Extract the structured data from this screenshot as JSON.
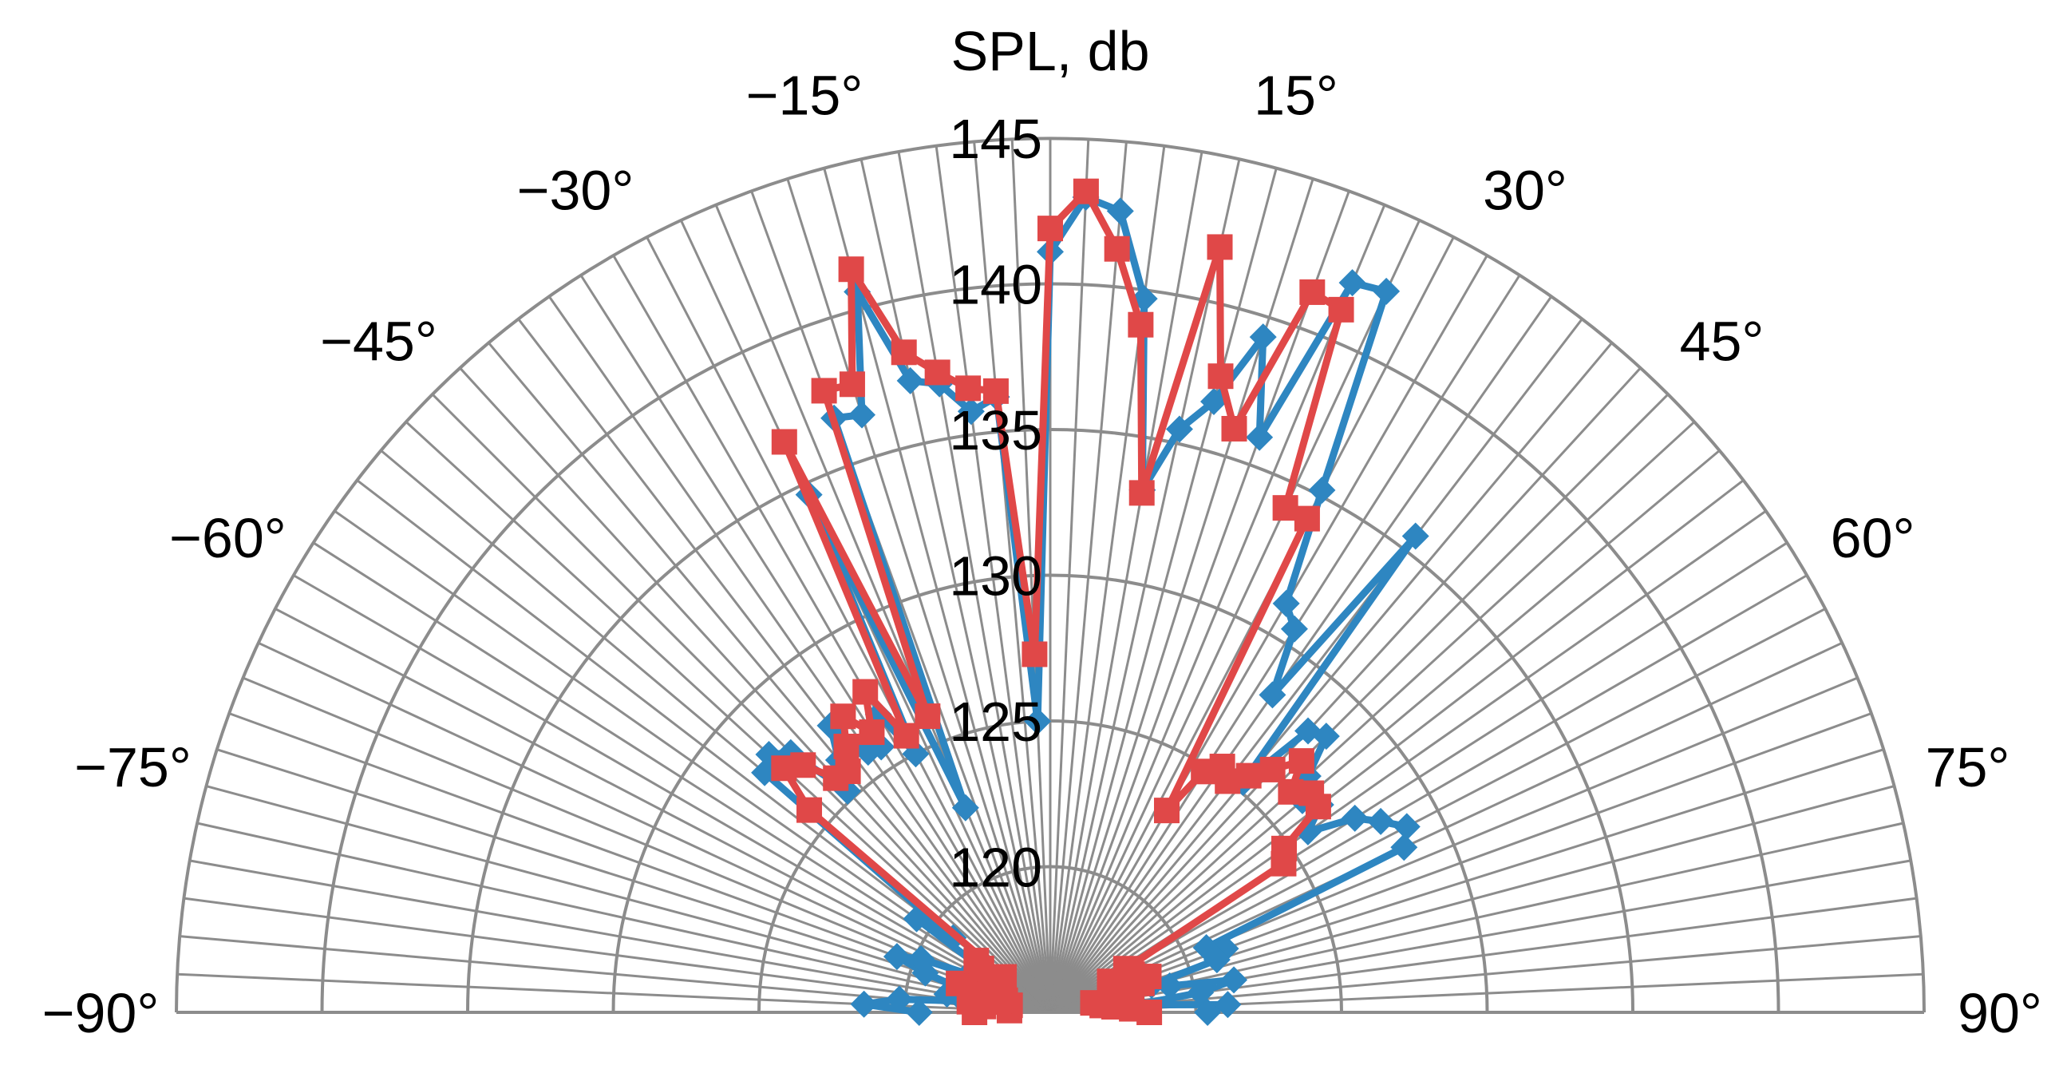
{
  "chart_data": {
    "type": "polar-line",
    "title": "SPL, db",
    "radial_axis": {
      "min": 115,
      "max": 145,
      "ticks": [
        120,
        125,
        130,
        135,
        140,
        145
      ],
      "tick_labels": [
        "120",
        "125",
        "130",
        "135",
        "140",
        "145"
      ]
    },
    "angular_axis": {
      "min": -90,
      "max": 90,
      "step": 2.5,
      "ticks": [
        -90,
        -75,
        -60,
        -45,
        -30,
        -15,
        15,
        30,
        45,
        60,
        75,
        90
      ],
      "tick_labels": [
        "−90°",
        "−75°",
        "−60°",
        "−45°",
        "−30°",
        "−15°",
        "15°",
        "30°",
        "45°",
        "60°",
        "75°",
        "90°"
      ]
    },
    "grid": true,
    "legend": "none",
    "series": [
      {
        "color": "#2E86C1",
        "marker": "diamond",
        "points": [
          {
            "a": -90,
            "r": 119.5
          },
          {
            "a": -87.5,
            "r": 121.4
          },
          {
            "a": -85,
            "r": 120.2
          },
          {
            "a": -82.5,
            "r": 118.0
          },
          {
            "a": -80,
            "r": 118.6
          },
          {
            "a": -77.5,
            "r": 117.2
          },
          {
            "a": -75,
            "r": 118.3
          },
          {
            "a": -72.5,
            "r": 119.5
          },
          {
            "a": -70,
            "r": 120.6
          },
          {
            "a": -67.5,
            "r": 119.8
          },
          {
            "a": -65,
            "r": 118.1
          },
          {
            "a": -62.5,
            "r": 117.3
          },
          {
            "a": -60,
            "r": 117.0
          },
          {
            "a": -57.5,
            "r": 117.6
          },
          {
            "a": -55,
            "r": 120.6
          },
          {
            "a": -52.5,
            "r": 119.2
          },
          {
            "a": -50,
            "r": 127.8
          },
          {
            "a": -47.5,
            "r": 128.1
          },
          {
            "a": -45,
            "r": 127.6
          },
          {
            "a": -42.5,
            "r": 125.3
          },
          {
            "a": -40,
            "r": 126.3
          },
          {
            "a": -37.5,
            "r": 127.4
          },
          {
            "a": -35,
            "r": 125.9
          },
          {
            "a": -32.5,
            "r": 125.8
          },
          {
            "a": -30,
            "r": 126.8
          },
          {
            "a": -27.5,
            "r": 125.0
          },
          {
            "a": -25,
            "r": 134.6
          },
          {
            "a": -22.5,
            "r": 122.6
          },
          {
            "a": -20,
            "r": 136.7
          },
          {
            "a": -17.5,
            "r": 136.5
          },
          {
            "a": -15,
            "r": 140.6
          },
          {
            "a": -12.5,
            "r": 137.2
          },
          {
            "a": -10,
            "r": 136.9
          },
          {
            "a": -7.5,
            "r": 135.8
          },
          {
            "a": -5,
            "r": 136.2
          },
          {
            "a": -2.5,
            "r": 125.0
          },
          {
            "a": 0,
            "r": 141.1
          },
          {
            "a": 2.5,
            "r": 143.0
          },
          {
            "a": 5,
            "r": 142.6
          },
          {
            "a": 7.5,
            "r": 139.7
          },
          {
            "a": 10,
            "r": 133.2
          },
          {
            "a": 12.5,
            "r": 135.5
          },
          {
            "a": 15,
            "r": 136.7
          },
          {
            "a": 17.5,
            "r": 139.3
          },
          {
            "a": 20,
            "r": 136.0
          },
          {
            "a": 22.5,
            "r": 142.1
          },
          {
            "a": 25,
            "r": 142.3
          },
          {
            "a": 27.5,
            "r": 135.2
          },
          {
            "a": 30,
            "r": 131.2
          },
          {
            "a": 32.5,
            "r": 130.6
          },
          {
            "a": 35,
            "r": 128.3
          },
          {
            "a": 37.5,
            "r": 135.6
          },
          {
            "a": 40,
            "r": 125.3
          },
          {
            "a": 42.5,
            "r": 128.1
          },
          {
            "a": 45,
            "r": 128.4
          },
          {
            "a": 47.5,
            "r": 127.0
          },
          {
            "a": 50,
            "r": 126.3
          },
          {
            "a": 52.5,
            "r": 126.7
          },
          {
            "a": 55,
            "r": 125.8
          },
          {
            "a": 57.5,
            "r": 127.4
          },
          {
            "a": 60,
            "r": 128.1
          },
          {
            "a": 62.5,
            "r": 128.8
          },
          {
            "a": 65,
            "r": 128.4
          },
          {
            "a": 67.5,
            "r": 120.8
          },
          {
            "a": 70,
            "r": 121.4
          },
          {
            "a": 72.5,
            "r": 121.0
          },
          {
            "a": 75,
            "r": 118.6
          },
          {
            "a": 77.5,
            "r": 119.2
          },
          {
            "a": 80,
            "r": 121.4
          },
          {
            "a": 82.5,
            "r": 120.2
          },
          {
            "a": 85,
            "r": 118.0
          },
          {
            "a": 87.5,
            "r": 121.1
          },
          {
            "a": 90,
            "r": 120.4
          }
        ]
      },
      {
        "color": "#E04848",
        "marker": "square",
        "points": [
          {
            "a": -90,
            "r": 117.6
          },
          {
            "a": -87.5,
            "r": 116.4
          },
          {
            "a": -85,
            "r": 117.3
          },
          {
            "a": -82.5,
            "r": 117.8
          },
          {
            "a": -80,
            "r": 116.4
          },
          {
            "a": -77.5,
            "r": 116.8
          },
          {
            "a": -75,
            "r": 116.6
          },
          {
            "a": -72.5,
            "r": 118.3
          },
          {
            "a": -70,
            "r": 117.1
          },
          {
            "a": -67.5,
            "r": 117.7
          },
          {
            "a": -65,
            "r": 117.4
          },
          {
            "a": -62.5,
            "r": 117.2
          },
          {
            "a": -60,
            "r": 117.4
          },
          {
            "a": -57.5,
            "r": 117.8
          },
          {
            "a": -55,
            "r": 118.1
          },
          {
            "a": -52.5,
            "r": 117.0
          },
          {
            "a": -50,
            "r": 125.8
          },
          {
            "a": -47.5,
            "r": 127.4
          },
          {
            "a": -45,
            "r": 127.0
          },
          {
            "a": -42.5,
            "r": 125.9
          },
          {
            "a": -40,
            "r": 125.8
          },
          {
            "a": -37.5,
            "r": 126.5
          },
          {
            "a": -35,
            "r": 127.4
          },
          {
            "a": -32.5,
            "r": 126.4
          },
          {
            "a": -30,
            "r": 127.7
          },
          {
            "a": -27.5,
            "r": 125.7
          },
          {
            "a": -25,
            "r": 136.6
          },
          {
            "a": -22.5,
            "r": 126.0
          },
          {
            "a": -20,
            "r": 137.7
          },
          {
            "a": -17.5,
            "r": 137.6
          },
          {
            "a": -15,
            "r": 141.4
          },
          {
            "a": -12.5,
            "r": 138.2
          },
          {
            "a": -10,
            "r": 137.3
          },
          {
            "a": -7.5,
            "r": 136.6
          },
          {
            "a": -5,
            "r": 136.4
          },
          {
            "a": -2.5,
            "r": 127.3
          },
          {
            "a": 0,
            "r": 141.9
          },
          {
            "a": 2.5,
            "r": 143.2
          },
          {
            "a": 5,
            "r": 141.3
          },
          {
            "a": 7.5,
            "r": 138.8
          },
          {
            "a": 10,
            "r": 133.1
          },
          {
            "a": 12.5,
            "r": 141.9
          },
          {
            "a": 15,
            "r": 137.6
          },
          {
            "a": 17.5,
            "r": 136.0
          },
          {
            "a": 20,
            "r": 141.3
          },
          {
            "a": 22.5,
            "r": 141.1
          },
          {
            "a": 25,
            "r": 134.1
          },
          {
            "a": 27.5,
            "r": 134.1
          },
          {
            "a": 30,
            "r": 123.0
          },
          {
            "a": 32.5,
            "r": 124.8
          },
          {
            "a": 35,
            "r": 125.3
          },
          {
            "a": 37.5,
            "r": 125.0
          },
          {
            "a": 40,
            "r": 125.6
          },
          {
            "a": 42.5,
            "r": 126.3
          },
          {
            "a": 45,
            "r": 127.2
          },
          {
            "a": 47.5,
            "r": 126.2
          },
          {
            "a": 50,
            "r": 126.7
          },
          {
            "a": 52.5,
            "r": 126.6
          },
          {
            "a": 55,
            "r": 124.8
          },
          {
            "a": 57.5,
            "r": 124.5
          },
          {
            "a": 60,
            "r": 118.0
          },
          {
            "a": 62.5,
            "r": 117.3
          },
          {
            "a": 65,
            "r": 118.1
          },
          {
            "a": 67.5,
            "r": 117.4
          },
          {
            "a": 70,
            "r": 118.6
          },
          {
            "a": 72.5,
            "r": 118.3
          },
          {
            "a": 75,
            "r": 117.8
          },
          {
            "a": 77.5,
            "r": 116.5
          },
          {
            "a": 80,
            "r": 117.2
          },
          {
            "a": 82.5,
            "r": 116.8
          },
          {
            "a": 85,
            "r": 117.2
          },
          {
            "a": 87.5,
            "r": 117.8
          },
          {
            "a": 90,
            "r": 118.4
          }
        ]
      }
    ]
  }
}
